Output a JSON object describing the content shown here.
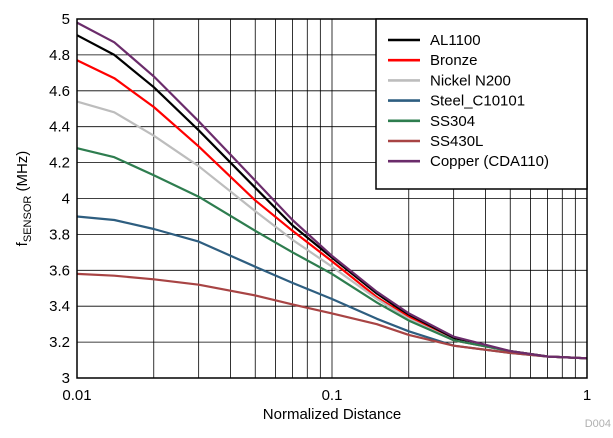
{
  "chart_data": {
    "type": "line",
    "title": "",
    "xlabel": "Normalized Distance",
    "ylabel_main": "f",
    "ylabel_sub": "SENSOR",
    "ylabel_unit": " (MHz)",
    "x_scale": "log",
    "xlim": [
      0.01,
      1
    ],
    "ylim": [
      3,
      5
    ],
    "grid": true,
    "legend_position": "top-right",
    "x_ticks": [
      0.01,
      0.1,
      1
    ],
    "x_tick_labels": [
      "0.01",
      "0.1",
      "1"
    ],
    "y_ticks": [
      3,
      3.2,
      3.4,
      3.6,
      3.8,
      4,
      4.2,
      4.4,
      4.6,
      4.8,
      5
    ],
    "y_tick_labels": [
      "3",
      "3.2",
      "3.4",
      "3.6",
      "3.8",
      "4",
      "4.2",
      "4.4",
      "4.6",
      "4.8",
      "5"
    ],
    "x": [
      0.01,
      0.014,
      0.02,
      0.03,
      0.05,
      0.07,
      0.1,
      0.15,
      0.2,
      0.3,
      0.5,
      0.7,
      1
    ],
    "series": [
      {
        "name": "AL1100",
        "color": "#000000",
        "values": [
          4.91,
          4.8,
          4.62,
          4.38,
          4.06,
          3.85,
          3.67,
          3.47,
          3.35,
          3.22,
          3.15,
          3.12,
          3.11
        ]
      },
      {
        "name": "Bronze",
        "color": "#ff0000",
        "values": [
          4.77,
          4.67,
          4.51,
          4.29,
          3.99,
          3.82,
          3.65,
          3.45,
          3.34,
          3.21,
          3.15,
          3.12,
          3.11
        ]
      },
      {
        "name": "Nickel N200",
        "color": "#bdbdbd",
        "values": [
          4.54,
          4.48,
          4.35,
          4.18,
          3.93,
          3.77,
          3.62,
          3.44,
          3.33,
          3.21,
          3.15,
          3.12,
          3.11
        ]
      },
      {
        "name": "Steel_C10101",
        "color": "#2e5e80",
        "values": [
          3.9,
          3.88,
          3.83,
          3.76,
          3.62,
          3.53,
          3.44,
          3.33,
          3.26,
          3.18,
          3.14,
          3.12,
          3.11
        ]
      },
      {
        "name": "SS304",
        "color": "#2e7d4f",
        "values": [
          4.28,
          4.23,
          4.13,
          4.01,
          3.82,
          3.7,
          3.58,
          3.42,
          3.32,
          3.21,
          3.15,
          3.12,
          3.11
        ]
      },
      {
        "name": "SS430L",
        "color": "#a84444",
        "values": [
          3.58,
          3.57,
          3.55,
          3.52,
          3.46,
          3.41,
          3.36,
          3.3,
          3.24,
          3.18,
          3.14,
          3.12,
          3.11
        ]
      },
      {
        "name": "Copper (CDA110)",
        "color": "#6b2c6b",
        "values": [
          4.98,
          4.87,
          4.68,
          4.43,
          4.1,
          3.88,
          3.68,
          3.48,
          3.36,
          3.23,
          3.15,
          3.12,
          3.11
        ]
      }
    ],
    "code_label": "D004"
  }
}
